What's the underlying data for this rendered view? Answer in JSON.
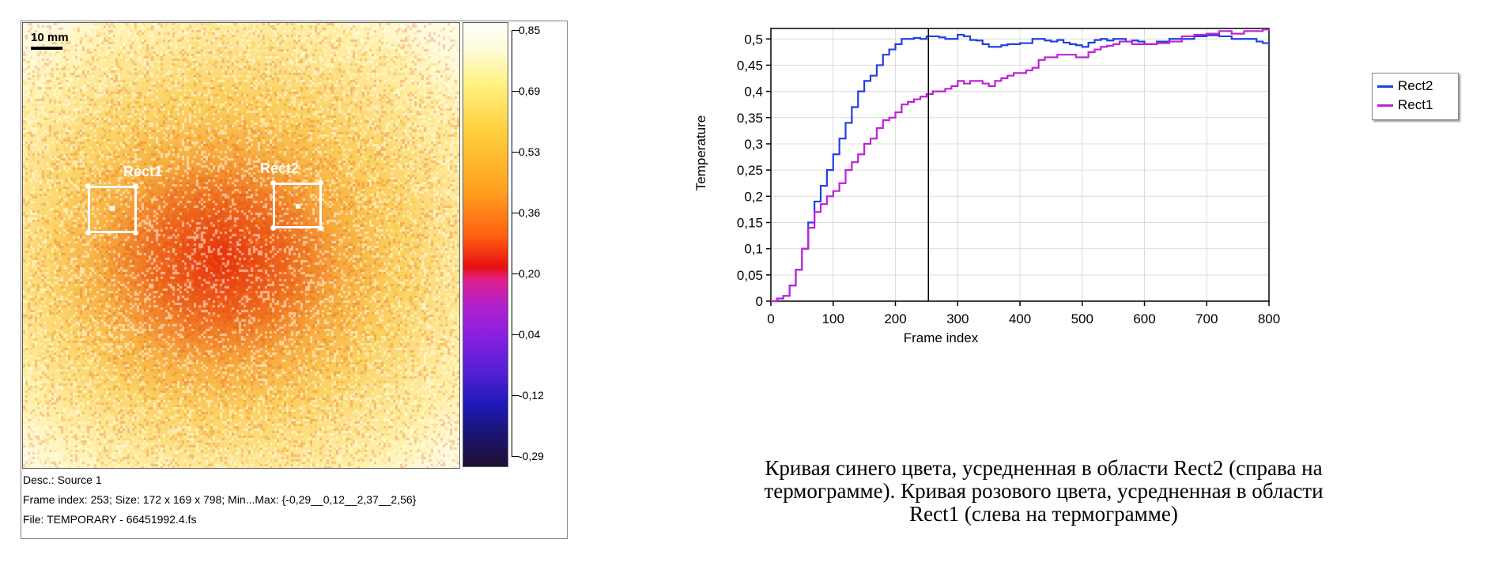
{
  "thermogram": {
    "scale_label": "10 mm",
    "roi": [
      {
        "name": "Rect1"
      },
      {
        "name": "Rect2"
      }
    ],
    "colorbar_ticks": [
      "0,85",
      "0,69",
      "0,53",
      "0,36",
      "0,20",
      "0,04",
      "-0,12",
      "-0,29"
    ],
    "info": {
      "desc": "Desc.: Source 1",
      "frame": "Frame index: 253; Size: 172 x 169 x 798; Min...Max: {-0,29__0,12__2,37__2,56}",
      "file": "File: TEMPORARY - 66451992.4.fs"
    }
  },
  "chart_data": {
    "type": "line",
    "title": "",
    "xlabel": "Frame index",
    "ylabel": "Temperature",
    "xlim": [
      0,
      800
    ],
    "ylim": [
      0,
      0.52
    ],
    "x_ticks": [
      0,
      100,
      200,
      300,
      400,
      500,
      600,
      700,
      800
    ],
    "x_tick_labels": [
      "0",
      "100",
      "200",
      "300",
      "400",
      "500",
      "600",
      "700",
      "800"
    ],
    "y_ticks": [
      0,
      0.05,
      0.1,
      0.15,
      0.2,
      0.25,
      0.3,
      0.35,
      0.4,
      0.45,
      0.5
    ],
    "y_tick_labels": [
      "0",
      "0,05",
      "0,1",
      "0,15",
      "0,2",
      "0,25",
      "0,3",
      "0,35",
      "0,4",
      "0,45",
      "0,5"
    ],
    "grid": true,
    "marker_x": 253,
    "legend_position": "right",
    "series": [
      {
        "name": "Rect2",
        "color": "#2040e0",
        "x": [
          0,
          10,
          20,
          30,
          40,
          50,
          60,
          70,
          80,
          90,
          100,
          110,
          120,
          130,
          140,
          150,
          160,
          170,
          180,
          190,
          200,
          210,
          220,
          230,
          240,
          250,
          260,
          270,
          280,
          290,
          300,
          310,
          320,
          330,
          340,
          350,
          360,
          370,
          380,
          390,
          400,
          410,
          420,
          430,
          440,
          450,
          460,
          470,
          480,
          490,
          500,
          510,
          520,
          530,
          540,
          550,
          560,
          570,
          580,
          590,
          600,
          620,
          640,
          660,
          680,
          700,
          720,
          740,
          760,
          780,
          790,
          800
        ],
        "y": [
          0.0,
          0.005,
          0.01,
          0.03,
          0.06,
          0.1,
          0.15,
          0.19,
          0.22,
          0.25,
          0.28,
          0.31,
          0.34,
          0.37,
          0.4,
          0.42,
          0.43,
          0.45,
          0.47,
          0.48,
          0.49,
          0.5,
          0.5,
          0.502,
          0.5,
          0.505,
          0.505,
          0.503,
          0.5,
          0.5,
          0.508,
          0.505,
          0.498,
          0.497,
          0.49,
          0.485,
          0.485,
          0.488,
          0.49,
          0.49,
          0.492,
          0.492,
          0.5,
          0.5,
          0.497,
          0.495,
          0.498,
          0.493,
          0.49,
          0.488,
          0.485,
          0.493,
          0.498,
          0.5,
          0.497,
          0.5,
          0.5,
          0.495,
          0.497,
          0.495,
          0.49,
          0.495,
          0.5,
          0.5,
          0.505,
          0.507,
          0.505,
          0.5,
          0.5,
          0.495,
          0.492,
          0.488
        ]
      },
      {
        "name": "Rect1",
        "color": "#c020d8",
        "x": [
          0,
          10,
          20,
          30,
          40,
          50,
          60,
          70,
          80,
          90,
          100,
          110,
          120,
          130,
          140,
          150,
          160,
          170,
          180,
          190,
          200,
          210,
          220,
          230,
          240,
          250,
          260,
          270,
          280,
          290,
          300,
          310,
          320,
          330,
          340,
          350,
          360,
          370,
          380,
          390,
          400,
          410,
          420,
          430,
          440,
          450,
          460,
          470,
          480,
          490,
          500,
          510,
          520,
          530,
          540,
          550,
          560,
          570,
          580,
          590,
          600,
          620,
          640,
          660,
          680,
          700,
          720,
          740,
          760,
          780,
          790,
          800
        ],
        "y": [
          0.0,
          0.005,
          0.01,
          0.03,
          0.06,
          0.1,
          0.14,
          0.17,
          0.185,
          0.2,
          0.21,
          0.225,
          0.25,
          0.265,
          0.28,
          0.3,
          0.31,
          0.33,
          0.345,
          0.35,
          0.36,
          0.375,
          0.38,
          0.385,
          0.39,
          0.395,
          0.4,
          0.4,
          0.405,
          0.41,
          0.42,
          0.415,
          0.42,
          0.42,
          0.415,
          0.41,
          0.42,
          0.425,
          0.43,
          0.435,
          0.435,
          0.44,
          0.445,
          0.46,
          0.465,
          0.465,
          0.47,
          0.47,
          0.47,
          0.465,
          0.465,
          0.475,
          0.48,
          0.485,
          0.487,
          0.49,
          0.495,
          0.495,
          0.49,
          0.49,
          0.49,
          0.492,
          0.495,
          0.505,
          0.508,
          0.51,
          0.515,
          0.51,
          0.515,
          0.515,
          0.518,
          0.515
        ]
      }
    ]
  },
  "caption": [
    "Кривая синего цвета, усредненная в области Rect2 (справа на",
    "термограмме). Кривая розового цвета, усредненная в области",
    "Rect1 (слева на термограмме)"
  ]
}
